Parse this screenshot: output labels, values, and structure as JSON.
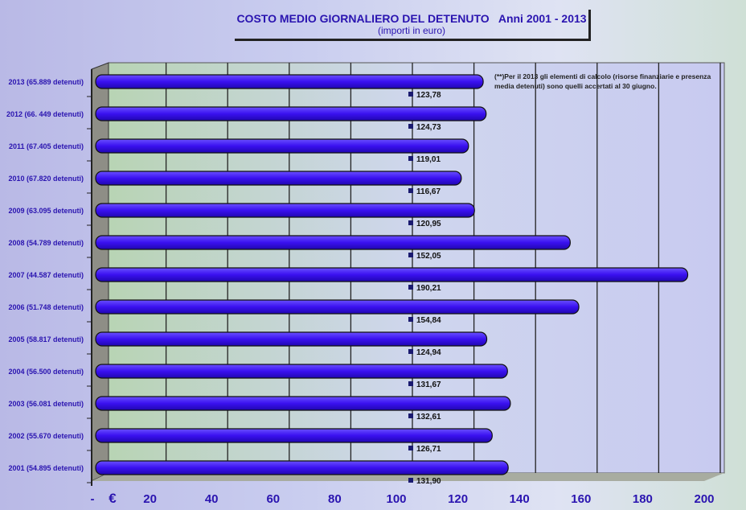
{
  "chart_data": {
    "type": "bar",
    "orientation": "horizontal",
    "title": "COSTO MEDIO GIORNALIERO DEL DETENUTO   Anni 2001 - 2013",
    "subtitle": "(importi in euro)",
    "note": "(**)Per il 2013 gli elementi di calcolo  (risorse finanziarie  e presenza media detenuti) sono quelli accertati al 30 giugno.",
    "categories": [
      "2013 (65.889 detenuti)",
      "2012 (66. 449 detenuti)",
      "2011 (67.405 detenuti)",
      "2010 (67.820 detenuti)",
      "2009 (63.095 detenuti)",
      "2008 (54.789 detenuti)",
      "2007 (44.587 detenuti)",
      "2006 (51.748 detenuti)",
      "2005 (58.817 detenuti)",
      "2004 (56.500 detenuti)",
      "2003 (56.081 detenuti)",
      "2002 (55.670 detenuti)",
      "2001 (54.895 detenuti)"
    ],
    "values": [
      123.78,
      124.73,
      119.01,
      116.67,
      120.95,
      152.05,
      190.21,
      154.84,
      124.94,
      131.67,
      132.61,
      126.71,
      131.9
    ],
    "value_labels": [
      "123,78",
      "124,73",
      "119,01",
      "116,67",
      "120,95",
      "152,05",
      "190,21",
      "154,84",
      "124,94",
      "131,67",
      "132,61",
      "126,71",
      "131,90"
    ],
    "xlim": [
      0,
      200
    ],
    "x_ticks": [
      "-",
      "20",
      "40",
      "60",
      "80",
      "100",
      "120",
      "140",
      "160",
      "180",
      "200"
    ],
    "x_unit": "€",
    "grid": true,
    "bar_color": "#3a10f0",
    "text_color": "#2a14b0"
  }
}
